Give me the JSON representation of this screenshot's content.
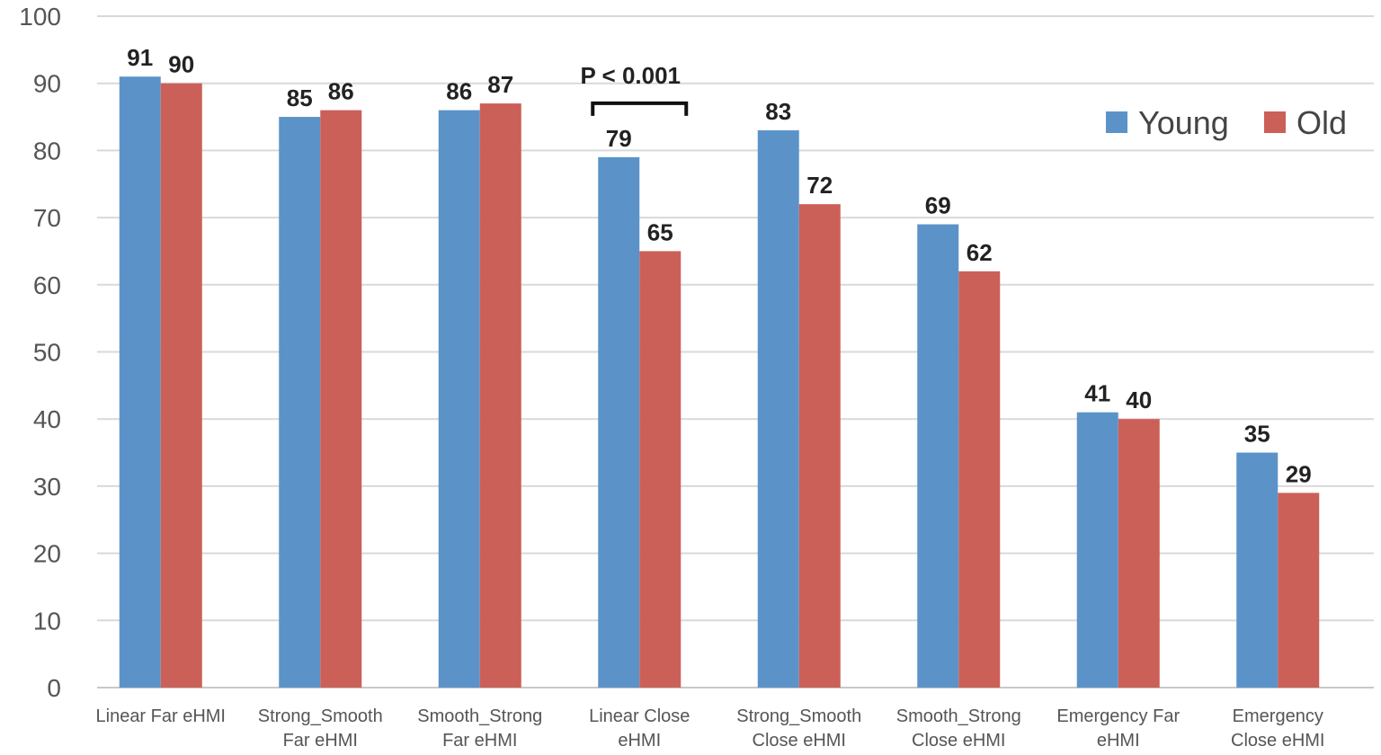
{
  "chart_data": {
    "type": "bar",
    "title": "",
    "xlabel": "",
    "ylabel": "",
    "ylim": [
      0,
      100
    ],
    "yticks": [
      0,
      10,
      20,
      30,
      40,
      50,
      60,
      70,
      80,
      90,
      100
    ],
    "grid": true,
    "legend_position": "top-right",
    "categories": [
      [
        "Linear Far eHMI"
      ],
      [
        "Strong_Smooth",
        "Far eHMI"
      ],
      [
        "Smooth_Strong",
        "Far eHMI"
      ],
      [
        "Linear Close",
        "eHMI"
      ],
      [
        "Strong_Smooth",
        "Close eHMI"
      ],
      [
        "Smooth_Strong",
        "Close eHMI"
      ],
      [
        "Emergency Far",
        "eHMI"
      ],
      [
        "Emergency",
        "Close eHMI"
      ]
    ],
    "series": [
      {
        "name": "Young",
        "color": "#5B93C9",
        "values": [
          91,
          85,
          86,
          79,
          83,
          69,
          41,
          35
        ]
      },
      {
        "name": "Old",
        "color": "#CB6059",
        "values": [
          90,
          86,
          87,
          65,
          72,
          62,
          40,
          29
        ]
      }
    ],
    "annotations": [
      {
        "text": "P < 0.001",
        "category_index": 3,
        "type": "bracket"
      }
    ]
  }
}
